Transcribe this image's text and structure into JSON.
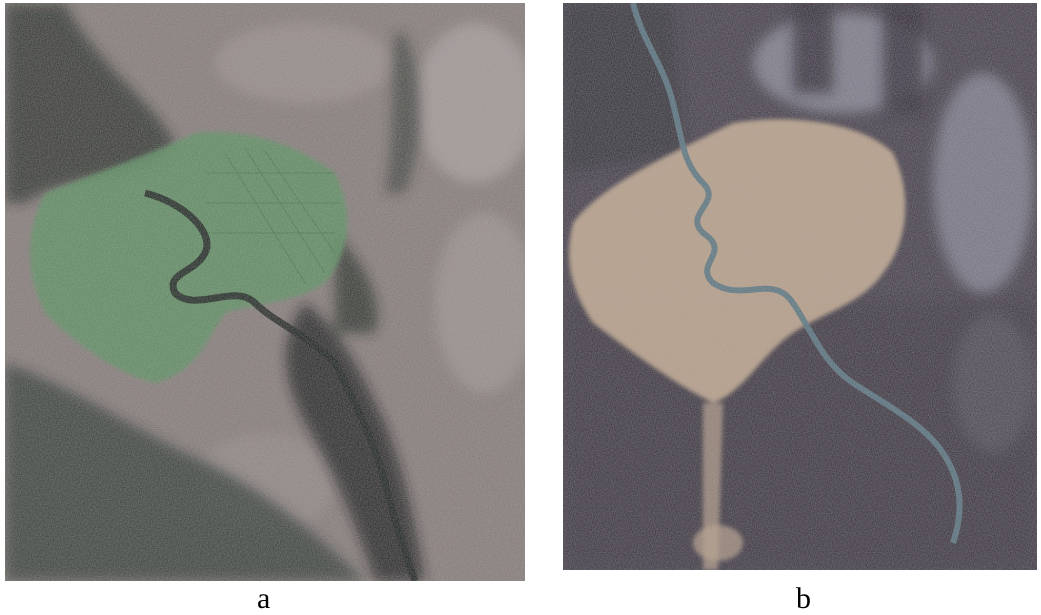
{
  "figure": {
    "panels": [
      {
        "caption": "a",
        "palette": {
          "background": "#807573",
          "urban": "#4f8a55",
          "vegetation": "#1e2520",
          "river": "#0f1512",
          "bare": "#b3a9a6"
        }
      },
      {
        "caption": "b",
        "palette": {
          "background": "#3a3340",
          "urban": "#c4a78c",
          "vegetation": "#2b2830",
          "river": "#4f6d7a",
          "bare": "#a9acbd"
        }
      }
    ]
  }
}
